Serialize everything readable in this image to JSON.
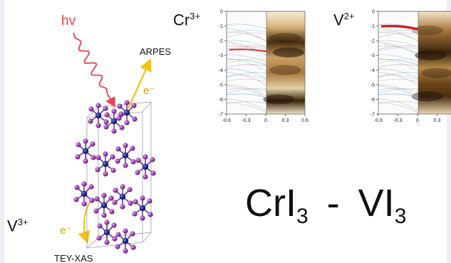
{
  "labels": {
    "hv": "hv",
    "arpes": "ARPES",
    "electron_top": "e⁻",
    "electron_bottom": "e⁻",
    "tey_xas": "TEY-XAS",
    "ion_v3": {
      "element": "V",
      "charge": "3+"
    },
    "ion_cr3": {
      "element": "Cr",
      "charge": "3+"
    },
    "ion_v2": {
      "element": "V",
      "charge": "2+"
    }
  },
  "formula": {
    "left": {
      "element": "CrI",
      "sub": "3"
    },
    "separator": "-",
    "right": {
      "element": "VI",
      "sub": "3"
    }
  },
  "colors": {
    "photon": "#e8414f",
    "electron_arrow": "#f0c419",
    "atom_metal": "#1f2a8c",
    "atom_iodine": "#9b3fae",
    "bond": "#6a3d8c"
  },
  "chart_data": [
    {
      "type": "heatmap",
      "name": "Cr3+ ARPES panel",
      "x_ticks": [
        "-0.6",
        "-0.3",
        "0",
        "0.3",
        "0.6"
      ],
      "y_ticks": [
        "0",
        "-1",
        "-2",
        "-3",
        "-4",
        "-5",
        "-6",
        "-7"
      ],
      "xlim": [
        -0.6,
        0.6
      ],
      "ylim": [
        -7,
        0
      ],
      "bands": [
        {
          "x": 0.3,
          "y": -1.8,
          "intensity": 0.6
        },
        {
          "x": 0.35,
          "y": -2.8,
          "intensity": 1.0
        },
        {
          "x": 0.3,
          "y": -4.0,
          "intensity": 0.55
        },
        {
          "x": 0.2,
          "y": -6.0,
          "intensity": 0.9
        }
      ]
    },
    {
      "type": "heatmap",
      "name": "V2+ ARPES panel",
      "x_ticks": [
        "-0.6",
        "-0.3",
        "0",
        "0.3",
        "0.6"
      ],
      "y_ticks": [
        "0",
        "-1",
        "-2",
        "-3",
        "-4",
        "-5",
        "-6",
        "-7"
      ],
      "xlim": [
        -0.6,
        0.6
      ],
      "ylim": [
        -7,
        0
      ],
      "bands": [
        {
          "x": 0.15,
          "y": -1.3,
          "intensity": 0.5
        },
        {
          "x": 0.2,
          "y": -3.0,
          "intensity": 1.0
        },
        {
          "x": 0.3,
          "y": -4.2,
          "intensity": 0.6
        },
        {
          "x": 0.15,
          "y": -5.8,
          "intensity": 0.85
        }
      ]
    }
  ]
}
